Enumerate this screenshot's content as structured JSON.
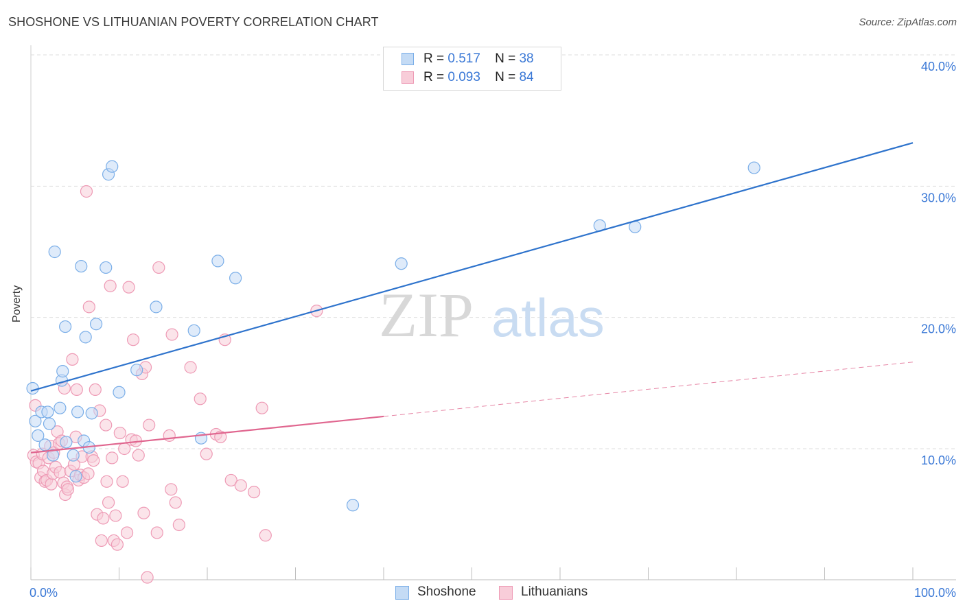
{
  "title": "SHOSHONE VS LITHUANIAN POVERTY CORRELATION CHART",
  "source": "Source: ZipAtlas.com",
  "watermark": {
    "zip": "ZIP",
    "atlas": "atlas"
  },
  "legend": {
    "rows": [
      {
        "r_label": "R =",
        "r_value": "0.517",
        "n_label": "N =",
        "n_value": "38"
      },
      {
        "r_label": "R =",
        "r_value": "0.093",
        "n_label": "N =",
        "n_value": "84"
      }
    ]
  },
  "bottom_legend": [
    "Shoshone",
    "Lithuanians"
  ],
  "chart_data": {
    "type": "scatter",
    "title": "SHOSHONE VS LITHUANIAN POVERTY CORRELATION CHART",
    "xlabel": "",
    "ylabel": "Poverty",
    "xlim": [
      0,
      100
    ],
    "ylim": [
      0,
      40
    ],
    "x_tick_labels": [
      "0.0%",
      "100.0%"
    ],
    "y_ticks": [
      10,
      20,
      30,
      40
    ],
    "y_tick_labels": [
      "10.0%",
      "20.0%",
      "30.0%",
      "40.0%"
    ],
    "grid": true,
    "legend_position": "top-center",
    "series": [
      {
        "name": "Shoshone",
        "color": "#7aaee8",
        "fill": "#c4dbf5",
        "trend_color": "#2e73cc",
        "R": 0.517,
        "N": 38,
        "trend": {
          "x0": 0,
          "y0": 14.4,
          "x1": 100,
          "y1": 33.3,
          "dashed_from": null
        },
        "points": [
          [
            0.2,
            14.6
          ],
          [
            0.5,
            12.1
          ],
          [
            0.8,
            11.0
          ],
          [
            1.2,
            12.8
          ],
          [
            1.6,
            10.3
          ],
          [
            1.9,
            12.8
          ],
          [
            2.1,
            11.9
          ],
          [
            2.5,
            9.5
          ],
          [
            2.7,
            25.0
          ],
          [
            3.3,
            13.1
          ],
          [
            3.5,
            15.2
          ],
          [
            3.6,
            15.9
          ],
          [
            3.9,
            19.3
          ],
          [
            4.0,
            10.5
          ],
          [
            4.8,
            9.5
          ],
          [
            5.1,
            7.9
          ],
          [
            5.3,
            12.8
          ],
          [
            5.7,
            23.9
          ],
          [
            6.0,
            10.6
          ],
          [
            6.2,
            18.5
          ],
          [
            6.6,
            10.1
          ],
          [
            6.9,
            12.7
          ],
          [
            7.4,
            19.5
          ],
          [
            8.5,
            23.8
          ],
          [
            8.8,
            30.9
          ],
          [
            9.2,
            31.5
          ],
          [
            10.0,
            14.3
          ],
          [
            12.0,
            16.0
          ],
          [
            14.2,
            20.8
          ],
          [
            18.5,
            19.0
          ],
          [
            19.3,
            10.8
          ],
          [
            21.2,
            24.3
          ],
          [
            23.2,
            23.0
          ],
          [
            36.5,
            5.7
          ],
          [
            42.0,
            24.1
          ],
          [
            64.5,
            27.0
          ],
          [
            68.5,
            26.9
          ],
          [
            82.0,
            31.4
          ]
        ]
      },
      {
        "name": "Lithuanians",
        "color": "#ee9ab5",
        "fill": "#f8cdd9",
        "trend_color": "#e0668f",
        "R": 0.093,
        "N": 84,
        "trend": {
          "x0": 0,
          "y0": 9.7,
          "x1": 100,
          "y1": 16.6,
          "dashed_from": 40
        },
        "points": [
          [
            0.3,
            9.5
          ],
          [
            0.6,
            9.0
          ],
          [
            0.9,
            8.9
          ],
          [
            1.1,
            7.8
          ],
          [
            1.3,
            9.6
          ],
          [
            1.4,
            8.3
          ],
          [
            1.6,
            7.5
          ],
          [
            1.8,
            7.6
          ],
          [
            2.0,
            9.3
          ],
          [
            2.2,
            10.2
          ],
          [
            2.3,
            7.3
          ],
          [
            2.5,
            8.1
          ],
          [
            2.6,
            9.7
          ],
          [
            2.8,
            8.6
          ],
          [
            3.0,
            11.3
          ],
          [
            3.2,
            10.4
          ],
          [
            3.3,
            8.2
          ],
          [
            3.5,
            10.6
          ],
          [
            3.7,
            7.4
          ],
          [
            3.8,
            14.6
          ],
          [
            3.9,
            6.5
          ],
          [
            4.1,
            7.1
          ],
          [
            4.2,
            6.9
          ],
          [
            4.5,
            8.3
          ],
          [
            4.7,
            16.8
          ],
          [
            4.9,
            8.8
          ],
          [
            5.1,
            10.9
          ],
          [
            5.2,
            14.5
          ],
          [
            5.4,
            7.6
          ],
          [
            5.6,
            8.0
          ],
          [
            5.8,
            9.4
          ],
          [
            6.0,
            7.8
          ],
          [
            6.3,
            29.6
          ],
          [
            6.5,
            8.1
          ],
          [
            6.6,
            20.8
          ],
          [
            6.9,
            9.4
          ],
          [
            7.1,
            9.1
          ],
          [
            7.3,
            14.5
          ],
          [
            7.5,
            5.0
          ],
          [
            7.8,
            12.9
          ],
          [
            8.0,
            3.0
          ],
          [
            8.2,
            4.7
          ],
          [
            8.5,
            11.8
          ],
          [
            8.6,
            7.5
          ],
          [
            8.8,
            5.9
          ],
          [
            9.0,
            22.4
          ],
          [
            9.2,
            9.3
          ],
          [
            9.4,
            3.0
          ],
          [
            9.6,
            4.9
          ],
          [
            9.8,
            2.7
          ],
          [
            10.1,
            11.2
          ],
          [
            10.4,
            7.5
          ],
          [
            10.6,
            10.0
          ],
          [
            10.9,
            3.6
          ],
          [
            11.1,
            22.3
          ],
          [
            11.4,
            10.7
          ],
          [
            11.6,
            18.3
          ],
          [
            11.9,
            10.6
          ],
          [
            12.2,
            9.5
          ],
          [
            12.6,
            15.7
          ],
          [
            12.8,
            5.1
          ],
          [
            13.0,
            16.2
          ],
          [
            13.2,
            0.2
          ],
          [
            13.4,
            11.8
          ],
          [
            14.3,
            3.6
          ],
          [
            14.5,
            23.8
          ],
          [
            15.7,
            11.0
          ],
          [
            15.9,
            6.9
          ],
          [
            16.0,
            18.7
          ],
          [
            16.4,
            5.9
          ],
          [
            16.8,
            4.2
          ],
          [
            18.1,
            16.2
          ],
          [
            19.2,
            13.8
          ],
          [
            19.9,
            9.6
          ],
          [
            21.0,
            11.1
          ],
          [
            21.5,
            10.9
          ],
          [
            22.0,
            18.3
          ],
          [
            22.7,
            7.6
          ],
          [
            23.8,
            7.2
          ],
          [
            25.3,
            6.7
          ],
          [
            26.2,
            13.1
          ],
          [
            26.6,
            3.4
          ],
          [
            32.4,
            20.5
          ],
          [
            0.5,
            13.3
          ]
        ]
      }
    ]
  }
}
